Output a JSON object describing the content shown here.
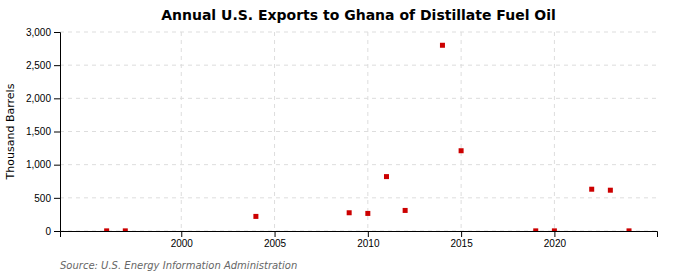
{
  "chart_data": {
    "type": "scatter",
    "title": "Annual U.S. Exports to Ghana of Distillate Fuel Oil",
    "ylabel": "Thousand Barrels",
    "source": "Source: U.S. Energy Information Administration",
    "x": [
      1996,
      1997,
      2004,
      2009,
      2010,
      2011,
      2012,
      2014,
      2015,
      2019,
      2020,
      2022,
      2023,
      2024
    ],
    "values": [
      2,
      2,
      220,
      275,
      265,
      820,
      310,
      2800,
      1210,
      2,
      2,
      630,
      615,
      2
    ],
    "color": "#cc0000",
    "marker": "square",
    "xlim": [
      1993.5,
      2025.5
    ],
    "xticks": [
      2000,
      2005,
      2010,
      2015,
      2020
    ],
    "ylim": [
      0,
      3000
    ],
    "yticks": [
      0,
      500,
      {
        "value": 1000,
        "label": "1,000"
      },
      {
        "value": 1500,
        "label": "1,500"
      },
      {
        "value": 2000,
        "label": "2,000"
      },
      {
        "value": 2500,
        "label": "2,500"
      },
      {
        "value": 3000,
        "label": "3,000"
      }
    ],
    "grid": true
  }
}
